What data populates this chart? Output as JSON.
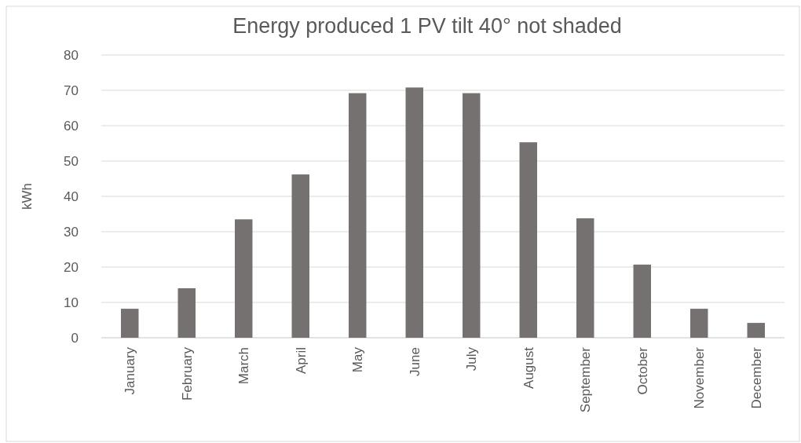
{
  "chart_data": {
    "type": "bar",
    "title": "Energy produced 1 PV tilt 40° not shaded",
    "ylabel": "kWh",
    "categories": [
      "January",
      "February",
      "March",
      "April",
      "May",
      "June",
      "July",
      "August",
      "September",
      "October",
      "November",
      "December"
    ],
    "values": [
      8.2,
      14.0,
      33.5,
      46.2,
      69.2,
      70.8,
      69.2,
      55.3,
      33.8,
      20.7,
      8.2,
      4.2
    ],
    "color": "#767171",
    "ylim": [
      0,
      80
    ],
    "yticks": [
      0,
      10,
      20,
      30,
      40,
      50,
      60,
      70,
      80
    ],
    "grid": "y"
  }
}
